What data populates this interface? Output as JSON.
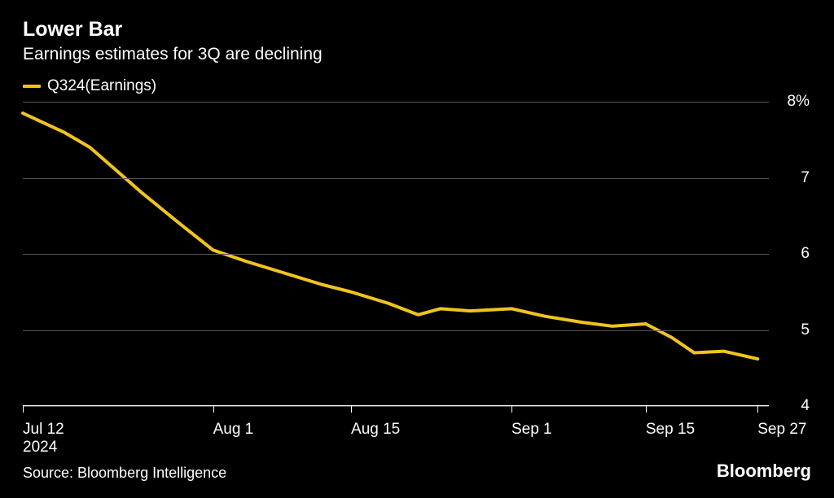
{
  "title": "Lower Bar",
  "subtitle": "Earnings estimates for 3Q are declining",
  "legend": {
    "label": "Q324(Earnings)",
    "color": "#f0c420"
  },
  "chart": {
    "type": "line",
    "background_color": "#000000",
    "line_color": "#f0c420",
    "line_width": 4,
    "grid_color": "#555555",
    "axis_color": "#ffffff",
    "text_color": "#ffffff",
    "label_fontsize": 19,
    "ylim": [
      4,
      8
    ],
    "yticks": [
      {
        "value": 8,
        "label": "8%"
      },
      {
        "value": 7,
        "label": "7"
      },
      {
        "value": 6,
        "label": "6"
      },
      {
        "value": 5,
        "label": "5"
      },
      {
        "value": 4,
        "label": "4"
      }
    ],
    "xticks": [
      {
        "pos": 0.0,
        "label": "Jul 12",
        "sublabel": "2024"
      },
      {
        "pos": 0.255,
        "label": "Aug 1"
      },
      {
        "pos": 0.44,
        "label": "Aug 15"
      },
      {
        "pos": 0.655,
        "label": "Sep 1"
      },
      {
        "pos": 0.835,
        "label": "Sep 15"
      },
      {
        "pos": 0.985,
        "label": "Sep 27"
      }
    ],
    "data": [
      {
        "x": 0.0,
        "y": 7.85
      },
      {
        "x": 0.055,
        "y": 7.6
      },
      {
        "x": 0.09,
        "y": 7.4
      },
      {
        "x": 0.125,
        "y": 7.1
      },
      {
        "x": 0.16,
        "y": 6.8
      },
      {
        "x": 0.21,
        "y": 6.4
      },
      {
        "x": 0.255,
        "y": 6.05
      },
      {
        "x": 0.3,
        "y": 5.9
      },
      {
        "x": 0.35,
        "y": 5.75
      },
      {
        "x": 0.4,
        "y": 5.6
      },
      {
        "x": 0.44,
        "y": 5.5
      },
      {
        "x": 0.49,
        "y": 5.35
      },
      {
        "x": 0.53,
        "y": 5.2
      },
      {
        "x": 0.56,
        "y": 5.28
      },
      {
        "x": 0.6,
        "y": 5.25
      },
      {
        "x": 0.655,
        "y": 5.28
      },
      {
        "x": 0.7,
        "y": 5.18
      },
      {
        "x": 0.75,
        "y": 5.1
      },
      {
        "x": 0.79,
        "y": 5.05
      },
      {
        "x": 0.835,
        "y": 5.08
      },
      {
        "x": 0.87,
        "y": 4.9
      },
      {
        "x": 0.9,
        "y": 4.7
      },
      {
        "x": 0.94,
        "y": 4.72
      },
      {
        "x": 0.985,
        "y": 4.62
      }
    ]
  },
  "source": "Source: Bloomberg Intelligence",
  "brand": "Bloomberg"
}
